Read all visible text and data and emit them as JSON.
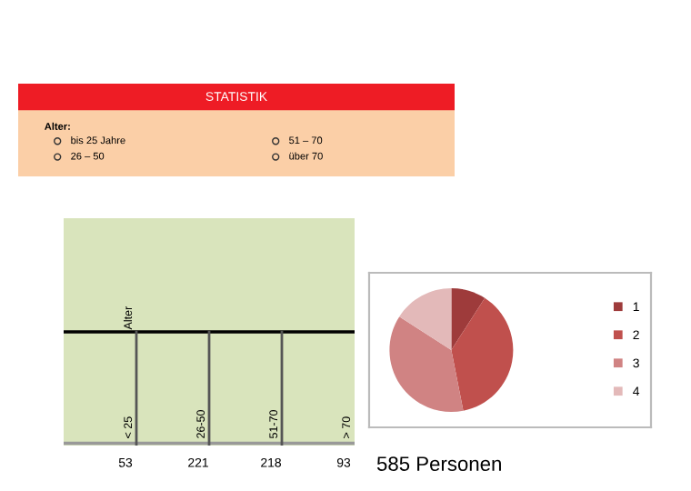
{
  "chart_data": [
    {
      "type": "other",
      "title": "STATISTIK",
      "annotations": [
        "Alter:",
        "bis 25 Jahre",
        "26 – 50",
        "51 – 70",
        "über 70"
      ]
    },
    {
      "type": "other",
      "ylabel": "Alter",
      "categories": [
        "< 25",
        "26-50",
        "51-70",
        "> 70"
      ],
      "values": [
        53,
        221,
        218,
        93
      ],
      "data_labels": true
    },
    {
      "type": "pie",
      "categories": [
        "1",
        "2",
        "3",
        "4"
      ],
      "values": [
        9.1,
        37.8,
        37.2,
        15.9
      ],
      "colors": [
        "#9e3b3b",
        "#c0504d",
        "#d08383",
        "#e3b9b9"
      ],
      "legend": "right",
      "annotations": [
        "585 Personen"
      ]
    }
  ]
}
